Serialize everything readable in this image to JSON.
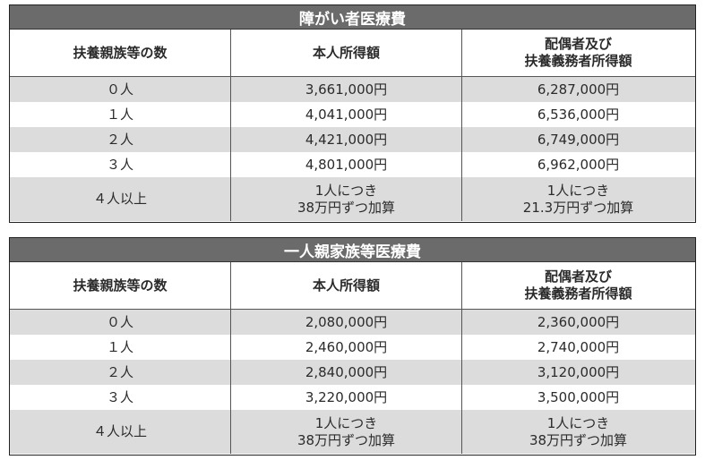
{
  "tables": [
    {
      "title": "障がい者医療費",
      "headers": [
        "扶養親族等の数",
        "本人所得額",
        "配偶者及び\n扶養義務者所得額"
      ],
      "header_col3_lines": [
        "配偶者及び",
        "扶養義務者所得額"
      ],
      "rows": [
        {
          "count": "０人",
          "self": "3,661,000円",
          "spouse": "6,287,000円"
        },
        {
          "count": "１人",
          "self": "4,041,000円",
          "spouse": "6,536,000円"
        },
        {
          "count": "２人",
          "self": "4,421,000円",
          "spouse": "6,749,000円"
        },
        {
          "count": "３人",
          "self": "4,801,000円",
          "spouse": "6,962,000円"
        },
        {
          "count": "４人以上",
          "self_lines": [
            "1人につき",
            "38万円ずつ加算"
          ],
          "spouse_lines": [
            "1人につき",
            "21.3万円ずつ加算"
          ]
        }
      ]
    },
    {
      "title": "一人親家族等医療費",
      "headers": [
        "扶養親族等の数",
        "本人所得額",
        "配偶者及び\n扶養義務者所得額"
      ],
      "header_col3_lines": [
        "配偶者及び",
        "扶養義務者所得額"
      ],
      "rows": [
        {
          "count": "０人",
          "self": "2,080,000円",
          "spouse": "2,360,000円"
        },
        {
          "count": "１人",
          "self": "2,460,000円",
          "spouse": "2,740,000円"
        },
        {
          "count": "２人",
          "self": "2,840,000円",
          "spouse": "3,120,000円"
        },
        {
          "count": "３人",
          "self": "3,220,000円",
          "spouse": "3,500,000円"
        },
        {
          "count": "４人以上",
          "self_lines": [
            "1人につき",
            "38万円ずつ加算"
          ],
          "spouse_lines": [
            "1人につき",
            "38万円ずつ加算"
          ]
        }
      ]
    }
  ]
}
